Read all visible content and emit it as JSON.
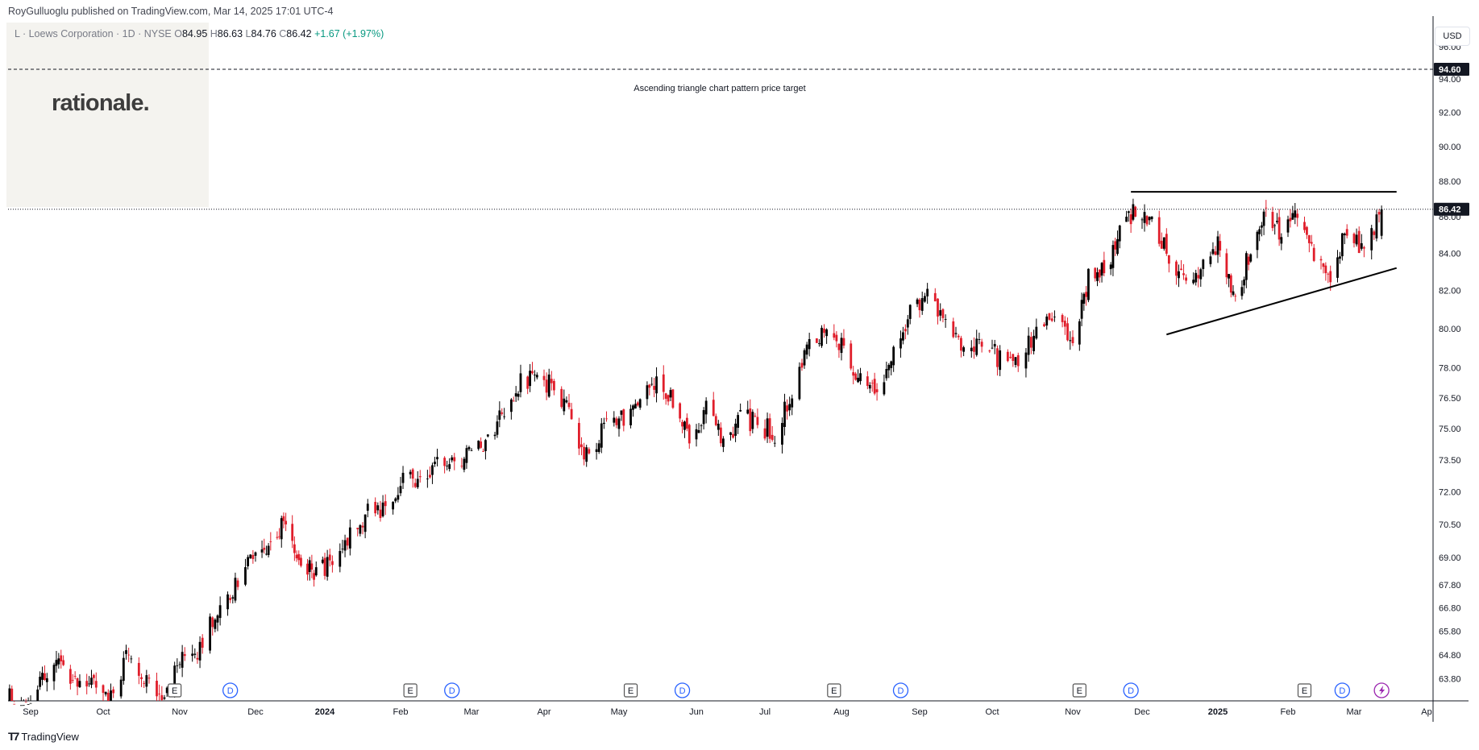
{
  "header": {
    "publisher": "RoyGulluoglu published on TradingView.com, Mar 14, 2025 17:01 UTC-4"
  },
  "logo": {
    "text": "rationale."
  },
  "legend": {
    "symbol": "L · Loews Corporation · 1D · NYSE",
    "open_label": "O",
    "open": "84.95",
    "high_label": "H",
    "high": "86.63",
    "low_label": "L",
    "low": "84.76",
    "close_label": "C",
    "close": "86.42",
    "change": "+1.67 (+1.97%)"
  },
  "currency": "USD",
  "footer": {
    "brand": "TradingView"
  },
  "colors": {
    "up": "#089981",
    "down": "#f23645",
    "candle_up": "#000000",
    "candle_down": "#e01e2b"
  },
  "chart_data": {
    "type": "candlestick",
    "title": "L · Loews Corporation · 1D · NYSE",
    "ylabel": "USD",
    "y_scale": "log",
    "ylim": [
      62.9,
      97.5
    ],
    "y_ticks": [
      "96.00",
      "94.00",
      "92.00",
      "90.00",
      "88.00",
      "86.00",
      "84.00",
      "82.00",
      "80.00",
      "78.00",
      "76.50",
      "75.00",
      "73.50",
      "72.00",
      "70.50",
      "69.00",
      "67.80",
      "66.80",
      "65.80",
      "64.80",
      "63.80"
    ],
    "x_ticks": [
      {
        "label": "Sep",
        "date": "2023-09-01",
        "bold": false
      },
      {
        "label": "Oct",
        "date": "2023-10-02",
        "bold": false
      },
      {
        "label": "Nov",
        "date": "2023-11-01",
        "bold": false
      },
      {
        "label": "Dec",
        "date": "2023-12-01",
        "bold": false
      },
      {
        "label": "2024",
        "date": "2024-01-02",
        "bold": true
      },
      {
        "label": "Feb",
        "date": "2024-02-01",
        "bold": false
      },
      {
        "label": "Mar",
        "date": "2024-03-01",
        "bold": false
      },
      {
        "label": "Apr",
        "date": "2024-04-01",
        "bold": false
      },
      {
        "label": "May",
        "date": "2024-05-01",
        "bold": false
      },
      {
        "label": "Jun",
        "date": "2024-06-03",
        "bold": false
      },
      {
        "label": "Jul",
        "date": "2024-07-01",
        "bold": false
      },
      {
        "label": "Aug",
        "date": "2024-08-01",
        "bold": false
      },
      {
        "label": "Sep",
        "date": "2024-09-03",
        "bold": false
      },
      {
        "label": "Oct",
        "date": "2024-10-01",
        "bold": false
      },
      {
        "label": "Nov",
        "date": "2024-11-01",
        "bold": false
      },
      {
        "label": "Dec",
        "date": "2024-12-02",
        "bold": false
      },
      {
        "label": "2025",
        "date": "2025-01-02",
        "bold": true
      },
      {
        "label": "Feb",
        "date": "2025-02-03",
        "bold": false
      },
      {
        "label": "Mar",
        "date": "2025-03-03",
        "bold": false
      },
      {
        "label": "Ap",
        "date": "2025-04-01",
        "bold": false
      }
    ],
    "price_line": {
      "value": 94.6,
      "label": "94.60"
    },
    "last_price": {
      "value": 86.42,
      "label": "86.42"
    },
    "annotation": "Ascending triangle chart pattern price target",
    "resistance_line": {
      "start": {
        "date": "2024-11-27",
        "price": 87.4
      },
      "end": {
        "date": "2025-03-20",
        "price": 87.4
      }
    },
    "support_line": {
      "start": {
        "date": "2024-12-12",
        "price": 79.7
      },
      "end": {
        "date": "2025-03-20",
        "price": 83.2
      }
    },
    "events": [
      {
        "type": "E",
        "date": "2023-10-30"
      },
      {
        "type": "D",
        "date": "2023-11-21"
      },
      {
        "type": "E",
        "date": "2024-02-05"
      },
      {
        "type": "D",
        "date": "2024-02-22"
      },
      {
        "type": "E",
        "date": "2024-05-06"
      },
      {
        "type": "D",
        "date": "2024-05-28"
      },
      {
        "type": "E",
        "date": "2024-07-29"
      },
      {
        "type": "D",
        "date": "2024-08-26"
      },
      {
        "type": "E",
        "date": "2024-11-04"
      },
      {
        "type": "D",
        "date": "2024-11-27"
      },
      {
        "type": "E",
        "date": "2025-02-10"
      },
      {
        "type": "D",
        "date": "2025-02-26"
      },
      {
        "type": "S",
        "date": "2025-03-14"
      }
    ],
    "closes": [
      [
        "2023-08-21",
        63.0
      ],
      [
        "2023-09-01",
        63.2
      ],
      [
        "2023-09-12",
        64.4
      ],
      [
        "2023-09-20",
        63.5
      ],
      [
        "2023-09-27",
        63.6
      ],
      [
        "2023-10-03",
        62.9
      ],
      [
        "2023-10-11",
        64.6
      ],
      [
        "2023-10-18",
        64.0
      ],
      [
        "2023-10-25",
        62.9
      ],
      [
        "2023-11-01",
        64.7
      ],
      [
        "2023-11-08",
        65.0
      ],
      [
        "2023-11-15",
        66.4
      ],
      [
        "2023-11-21",
        67.4
      ],
      [
        "2023-11-29",
        69.2
      ],
      [
        "2023-12-06",
        69.4
      ],
      [
        "2023-12-13",
        70.6
      ],
      [
        "2023-12-20",
        69.4
      ],
      [
        "2023-12-28",
        68.1
      ],
      [
        "2024-01-05",
        69.0
      ],
      [
        "2024-01-12",
        70.0
      ],
      [
        "2024-01-19",
        71.0
      ],
      [
        "2024-01-26",
        71.2
      ],
      [
        "2024-02-02",
        72.6
      ],
      [
        "2024-02-09",
        72.2
      ],
      [
        "2024-02-16",
        73.2
      ],
      [
        "2024-02-23",
        73.6
      ],
      [
        "2024-03-01",
        73.6
      ],
      [
        "2024-03-08",
        74.6
      ],
      [
        "2024-03-15",
        75.9
      ],
      [
        "2024-03-22",
        77.2
      ],
      [
        "2024-03-29",
        77.6
      ],
      [
        "2024-04-05",
        77.0
      ],
      [
        "2024-04-12",
        75.4
      ],
      [
        "2024-04-19",
        73.4
      ],
      [
        "2024-04-26",
        75.4
      ],
      [
        "2024-05-03",
        75.4
      ],
      [
        "2024-05-10",
        76.4
      ],
      [
        "2024-05-17",
        77.4
      ],
      [
        "2024-05-24",
        76.4
      ],
      [
        "2024-05-31",
        74.3
      ],
      [
        "2024-06-07",
        76.0
      ],
      [
        "2024-06-14",
        74.3
      ],
      [
        "2024-06-21",
        75.6
      ],
      [
        "2024-06-28",
        75.2
      ],
      [
        "2024-07-05",
        74.8
      ],
      [
        "2024-07-12",
        76.8
      ],
      [
        "2024-07-19",
        79.0
      ],
      [
        "2024-07-26",
        80.0
      ],
      [
        "2024-08-02",
        79.2
      ],
      [
        "2024-08-09",
        77.2
      ],
      [
        "2024-08-16",
        77.2
      ],
      [
        "2024-08-23",
        78.6
      ],
      [
        "2024-08-30",
        80.8
      ],
      [
        "2024-09-06",
        81.8
      ],
      [
        "2024-09-13",
        80.2
      ],
      [
        "2024-09-20",
        78.6
      ],
      [
        "2024-09-27",
        79.4
      ],
      [
        "2024-10-04",
        78.4
      ],
      [
        "2024-10-11",
        78.6
      ],
      [
        "2024-10-18",
        79.6
      ],
      [
        "2024-10-25",
        80.8
      ],
      [
        "2024-11-01",
        79.4
      ],
      [
        "2024-11-08",
        82.6
      ],
      [
        "2024-11-15",
        83.0
      ],
      [
        "2024-11-22",
        85.0
      ],
      [
        "2024-11-29",
        86.6
      ],
      [
        "2024-12-06",
        85.6
      ],
      [
        "2024-12-13",
        84.0
      ],
      [
        "2024-12-20",
        82.0
      ],
      [
        "2024-12-27",
        83.4
      ],
      [
        "2025-01-03",
        84.6
      ],
      [
        "2025-01-10",
        81.2
      ],
      [
        "2025-01-17",
        84.4
      ],
      [
        "2025-01-24",
        86.4
      ],
      [
        "2025-01-31",
        85.0
      ],
      [
        "2025-02-07",
        86.0
      ],
      [
        "2025-02-14",
        83.8
      ],
      [
        "2025-02-21",
        82.6
      ],
      [
        "2025-02-28",
        85.4
      ],
      [
        "2025-03-07",
        84.2
      ],
      [
        "2025-03-14",
        86.42
      ]
    ]
  }
}
